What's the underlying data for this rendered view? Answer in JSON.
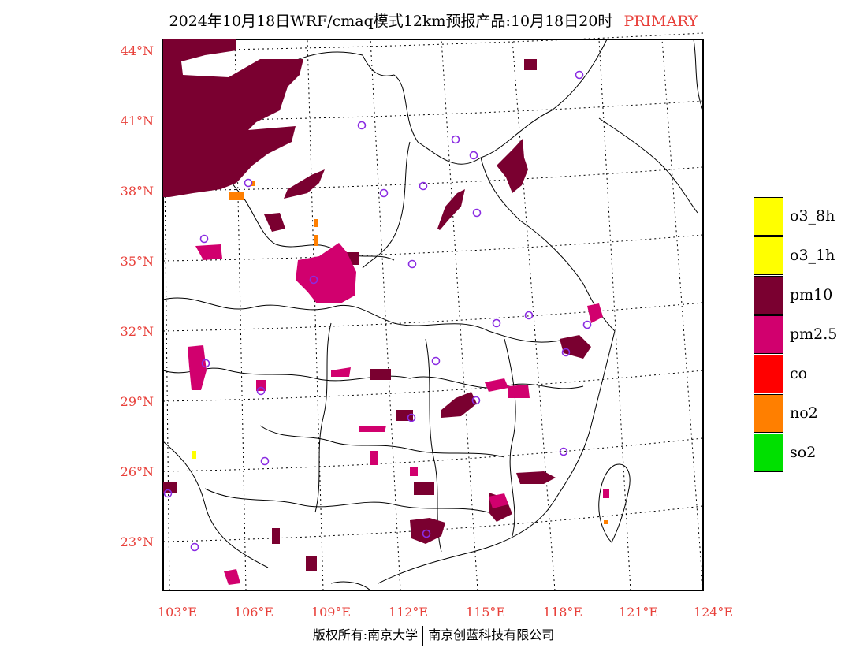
{
  "header": {
    "title": "2024年10月18日WRF/cmaq模式12km预报产品:10月18日20时",
    "status": "PRIMARY"
  },
  "map": {
    "lat_ticks": [
      "44°N",
      "41°N",
      "38°N",
      "35°N",
      "32°N",
      "29°N",
      "26°N",
      "23°N"
    ],
    "lon_ticks": [
      "103°E",
      "106°E",
      "109°E",
      "112°E",
      "115°E",
      "118°E",
      "121°E",
      "124°E"
    ]
  },
  "colors": {
    "o3_8h": "#ffff00",
    "o3_1h": "#ffff00",
    "pm10": "#7a0030",
    "pm25": "#d1006e",
    "co": "#ff0000",
    "no2": "#ff7f00",
    "so2": "#00e000",
    "station_marker": "#8a2be2",
    "tick_text": "#e8403a"
  },
  "legend": [
    {
      "label": "o3_8h",
      "color": "#ffff00"
    },
    {
      "label": "o3_1h",
      "color": "#ffff00"
    },
    {
      "label": "pm10",
      "color": "#7a0030"
    },
    {
      "label": "pm2.5",
      "color": "#d1006e"
    },
    {
      "label": "co",
      "color": "#ff0000"
    },
    {
      "label": "no2",
      "color": "#ff7f00"
    },
    {
      "label": "so2",
      "color": "#00e000"
    }
  ],
  "footer": {
    "copyright": "版权所有:南京大学",
    "company": "南京创蓝科技有限公司"
  }
}
